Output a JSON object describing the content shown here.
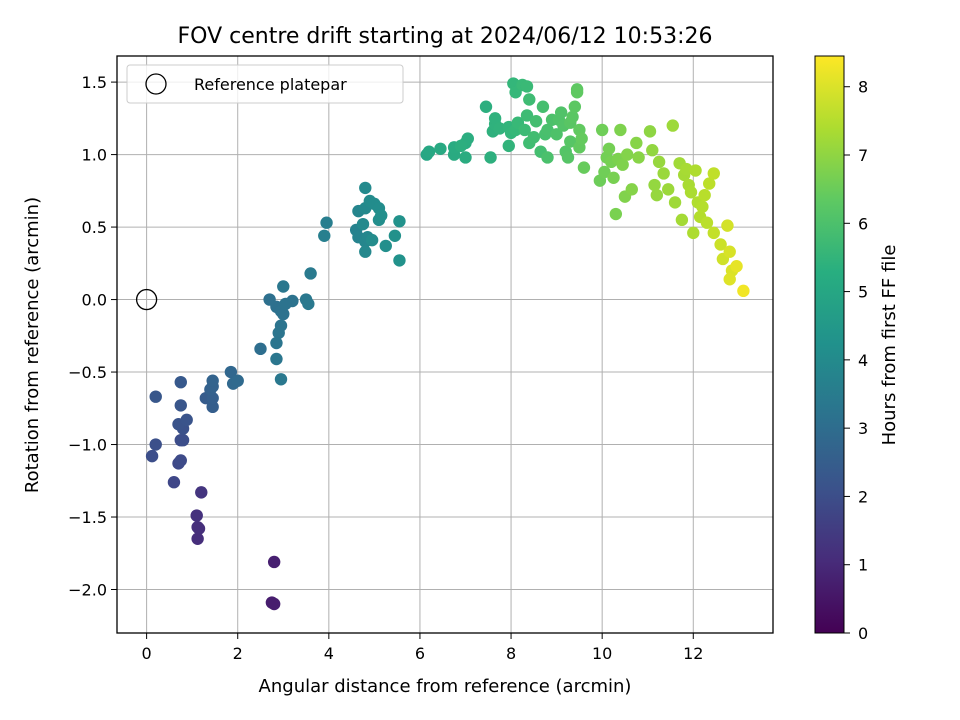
{
  "chart_data": {
    "type": "scatter",
    "title": "FOV centre drift starting at 2024/06/12 10:53:26",
    "xlabel": "Angular distance from reference (arcmin)",
    "ylabel": "Rotation from reference (arcmin)",
    "xlim": [
      -0.65,
      13.75
    ],
    "ylim": [
      -2.3,
      1.68
    ],
    "xticks": [
      0,
      2,
      4,
      6,
      8,
      10,
      12
    ],
    "yticks": [
      -2.0,
      -1.5,
      -1.0,
      -0.5,
      0.0,
      0.5,
      1.0,
      1.5
    ],
    "ytick_labels": [
      "−2.0",
      "−1.5",
      "−1.0",
      "−0.5",
      "0.0",
      "0.5",
      "1.0",
      "1.5"
    ],
    "grid": true,
    "colormap": "viridis",
    "legend": {
      "position": "upper-left",
      "entry": "Reference platepar",
      "marker": "open-circle",
      "x": 0.0,
      "y": 0.0
    },
    "colorbar": {
      "label": "Hours from first FF file",
      "range": [
        0,
        8.45
      ],
      "ticks": [
        0,
        1,
        2,
        3,
        4,
        5,
        6,
        7,
        8
      ]
    },
    "series": [
      {
        "points": [
          [
            2.8,
            -2.1,
            0.7
          ],
          [
            2.75,
            -2.09,
            0.68
          ],
          [
            2.8,
            -1.81,
            0.72
          ],
          [
            1.12,
            -1.65,
            1.1
          ],
          [
            1.12,
            -1.57,
            1.15
          ],
          [
            1.1,
            -1.49,
            1.2
          ],
          [
            1.2,
            -1.33,
            1.3
          ],
          [
            1.15,
            -1.58,
            1.12
          ],
          [
            0.6,
            -1.26,
            1.8
          ],
          [
            0.7,
            -1.13,
            1.85
          ],
          [
            0.75,
            -1.11,
            1.9
          ],
          [
            0.12,
            -1.08,
            2.0
          ],
          [
            0.2,
            -1.0,
            2.05
          ],
          [
            0.75,
            -0.97,
            1.95
          ],
          [
            0.8,
            -0.97,
            2.0
          ],
          [
            0.8,
            -0.89,
            2.1
          ],
          [
            0.7,
            -0.86,
            2.15
          ],
          [
            0.88,
            -0.83,
            2.2
          ],
          [
            0.75,
            -0.73,
            2.25
          ],
          [
            0.2,
            -0.67,
            2.3
          ],
          [
            0.75,
            -0.57,
            2.35
          ],
          [
            1.3,
            -0.68,
            2.45
          ],
          [
            1.45,
            -0.74,
            2.5
          ],
          [
            1.45,
            -0.68,
            2.55
          ],
          [
            1.4,
            -0.62,
            2.6
          ],
          [
            1.45,
            -0.6,
            2.62
          ],
          [
            1.45,
            -0.56,
            2.65
          ],
          [
            1.85,
            -0.5,
            2.8
          ],
          [
            1.9,
            -0.58,
            2.85
          ],
          [
            2.0,
            -0.56,
            2.9
          ],
          [
            2.5,
            -0.34,
            3.05
          ],
          [
            2.7,
            0.0,
            3.1
          ],
          [
            2.85,
            -0.05,
            3.12
          ],
          [
            2.95,
            -0.08,
            3.15
          ],
          [
            3.0,
            -0.1,
            3.18
          ],
          [
            3.2,
            -0.01,
            3.2
          ],
          [
            3.05,
            -0.03,
            3.22
          ],
          [
            2.95,
            -0.18,
            3.25
          ],
          [
            2.9,
            -0.23,
            3.28
          ],
          [
            2.85,
            -0.3,
            3.3
          ],
          [
            2.85,
            -0.41,
            3.32
          ],
          [
            3.0,
            0.09,
            3.35
          ],
          [
            2.95,
            -0.55,
            3.38
          ],
          [
            3.5,
            0.0,
            3.4
          ],
          [
            3.55,
            -0.03,
            3.42
          ],
          [
            3.6,
            0.18,
            3.45
          ],
          [
            3.95,
            0.53,
            3.6
          ],
          [
            3.9,
            0.44,
            3.65
          ],
          [
            4.6,
            0.48,
            3.75
          ],
          [
            4.65,
            0.43,
            3.8
          ],
          [
            4.65,
            0.61,
            3.85
          ],
          [
            4.8,
            0.4,
            3.9
          ],
          [
            4.85,
            0.43,
            3.92
          ],
          [
            4.8,
            0.33,
            3.95
          ],
          [
            4.75,
            0.52,
            3.98
          ],
          [
            4.8,
            0.63,
            4.0
          ],
          [
            4.8,
            0.77,
            4.02
          ],
          [
            4.9,
            0.68,
            4.05
          ],
          [
            4.95,
            0.41,
            4.08
          ],
          [
            5.0,
            0.66,
            4.1
          ],
          [
            5.1,
            0.63,
            4.12
          ],
          [
            5.1,
            0.55,
            4.15
          ],
          [
            5.15,
            0.58,
            4.18
          ],
          [
            5.25,
            0.37,
            4.2
          ],
          [
            5.45,
            0.44,
            4.25
          ],
          [
            5.55,
            0.54,
            4.28
          ],
          [
            5.55,
            0.27,
            4.3
          ],
          [
            6.15,
            1.0,
            5.0
          ],
          [
            6.2,
            1.02,
            5.05
          ],
          [
            6.45,
            1.04,
            5.1
          ],
          [
            6.75,
            1.0,
            5.15
          ],
          [
            6.75,
            1.05,
            5.18
          ],
          [
            7.0,
            0.98,
            5.2
          ],
          [
            7.0,
            1.08,
            5.22
          ],
          [
            7.05,
            1.11,
            5.25
          ],
          [
            6.9,
            1.06,
            5.28
          ],
          [
            7.45,
            1.33,
            5.3
          ],
          [
            7.55,
            0.98,
            5.35
          ],
          [
            7.6,
            1.16,
            5.38
          ],
          [
            7.65,
            1.21,
            5.4
          ],
          [
            7.65,
            1.25,
            5.42
          ],
          [
            7.75,
            1.18,
            5.45
          ],
          [
            7.95,
            1.06,
            5.5
          ],
          [
            7.95,
            1.19,
            5.52
          ],
          [
            8.0,
            1.15,
            5.55
          ],
          [
            8.05,
            1.49,
            5.6
          ],
          [
            8.1,
            1.43,
            5.62
          ],
          [
            8.1,
            1.17,
            5.65
          ],
          [
            8.15,
            1.22,
            5.68
          ],
          [
            8.25,
            1.48,
            5.7
          ],
          [
            8.35,
            1.47,
            5.72
          ],
          [
            8.3,
            1.17,
            5.75
          ],
          [
            8.35,
            1.27,
            5.78
          ],
          [
            8.4,
            1.38,
            5.8
          ],
          [
            8.4,
            1.08,
            5.82
          ],
          [
            8.5,
            1.12,
            5.85
          ],
          [
            8.55,
            1.23,
            5.88
          ],
          [
            8.65,
            1.02,
            5.9
          ],
          [
            8.7,
            1.33,
            5.92
          ],
          [
            8.75,
            1.14,
            5.95
          ],
          [
            8.8,
            1.17,
            5.98
          ],
          [
            8.8,
            0.98,
            6.0
          ],
          [
            8.9,
            1.24,
            6.02
          ],
          [
            9.0,
            1.14,
            6.05
          ],
          [
            9.05,
            1.24,
            6.08
          ],
          [
            9.1,
            1.29,
            6.1
          ],
          [
            9.15,
            1.2,
            6.12
          ],
          [
            9.2,
            1.02,
            6.15
          ],
          [
            9.25,
            0.98,
            6.18
          ],
          [
            9.3,
            1.09,
            6.2
          ],
          [
            9.3,
            1.22,
            6.22
          ],
          [
            9.35,
            1.26,
            6.25
          ],
          [
            9.4,
            1.33,
            6.28
          ],
          [
            9.45,
            1.45,
            6.3
          ],
          [
            9.45,
            1.43,
            6.32
          ],
          [
            9.5,
            1.17,
            6.35
          ],
          [
            9.5,
            1.05,
            6.38
          ],
          [
            9.55,
            1.11,
            6.4
          ],
          [
            9.6,
            0.91,
            6.45
          ],
          [
            9.95,
            0.82,
            6.55
          ],
          [
            10.0,
            1.17,
            6.58
          ],
          [
            10.05,
            0.88,
            6.6
          ],
          [
            10.1,
            0.98,
            6.62
          ],
          [
            10.15,
            1.04,
            6.65
          ],
          [
            10.2,
            0.95,
            6.68
          ],
          [
            10.25,
            0.84,
            6.7
          ],
          [
            10.3,
            0.59,
            6.72
          ],
          [
            10.35,
            0.97,
            6.75
          ],
          [
            10.4,
            1.17,
            6.78
          ],
          [
            10.45,
            0.93,
            6.8
          ],
          [
            10.5,
            0.71,
            6.82
          ],
          [
            10.55,
            1.0,
            6.85
          ],
          [
            10.65,
            0.76,
            6.88
          ],
          [
            10.75,
            1.08,
            6.9
          ],
          [
            10.8,
            0.98,
            6.92
          ],
          [
            11.05,
            1.16,
            7.0
          ],
          [
            11.1,
            1.03,
            7.05
          ],
          [
            11.15,
            0.79,
            7.08
          ],
          [
            11.2,
            0.72,
            7.1
          ],
          [
            11.25,
            0.95,
            7.12
          ],
          [
            11.35,
            0.87,
            7.15
          ],
          [
            11.45,
            0.76,
            7.18
          ],
          [
            11.55,
            1.2,
            7.2
          ],
          [
            11.6,
            0.67,
            7.22
          ],
          [
            11.7,
            0.94,
            7.25
          ],
          [
            11.75,
            0.55,
            7.28
          ],
          [
            11.8,
            0.86,
            7.3
          ],
          [
            11.85,
            0.9,
            7.32
          ],
          [
            11.9,
            0.79,
            7.35
          ],
          [
            11.95,
            0.74,
            7.38
          ],
          [
            12.0,
            0.46,
            7.4
          ],
          [
            12.05,
            0.89,
            7.42
          ],
          [
            12.1,
            0.67,
            7.45
          ],
          [
            12.15,
            0.57,
            7.48
          ],
          [
            12.2,
            0.64,
            7.5
          ],
          [
            12.25,
            0.72,
            7.55
          ],
          [
            12.3,
            0.53,
            7.58
          ],
          [
            12.35,
            0.8,
            7.6
          ],
          [
            12.45,
            0.87,
            7.65
          ],
          [
            12.45,
            0.46,
            7.7
          ],
          [
            12.6,
            0.38,
            7.8
          ],
          [
            12.65,
            0.28,
            7.85
          ],
          [
            12.75,
            0.51,
            7.9
          ],
          [
            12.8,
            0.33,
            7.95
          ],
          [
            12.85,
            0.2,
            8.0
          ],
          [
            12.8,
            0.14,
            8.05
          ],
          [
            12.95,
            0.23,
            8.15
          ],
          [
            13.1,
            0.06,
            8.3
          ]
        ]
      }
    ]
  }
}
